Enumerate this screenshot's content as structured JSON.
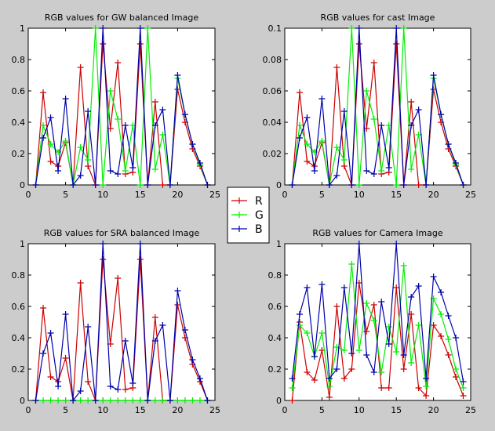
{
  "chart_data": [
    {
      "type": "line",
      "title": "RGB values for GW balanced Image",
      "xlabel": "",
      "ylabel": "",
      "xlim": [
        0,
        25
      ],
      "ylim": [
        0,
        1
      ],
      "xticks": [
        "0",
        "5",
        "10",
        "15",
        "20",
        "25"
      ],
      "yticks": [
        "0",
        "0.2",
        "0.4",
        "0.6",
        "0.8",
        "1"
      ],
      "x": [
        1,
        2,
        3,
        4,
        5,
        6,
        7,
        8,
        9,
        10,
        11,
        12,
        13,
        14,
        15,
        16,
        17,
        18,
        19,
        20,
        21,
        22,
        23,
        24
      ],
      "series": [
        {
          "name": "R",
          "color": "#cc0000",
          "values": [
            0,
            0.59,
            0.15,
            0.12,
            0.27,
            0,
            0.75,
            0.12,
            0,
            0.9,
            0.36,
            0.78,
            0.07,
            0.08,
            0.9,
            0,
            0.53,
            0,
            0,
            0.61,
            0.4,
            0.23,
            0.12,
            0
          ]
        },
        {
          "name": "G",
          "color": "#00ee00",
          "values": [
            0,
            0.38,
            0.26,
            0.21,
            0.28,
            0,
            0.24,
            0.16,
            1,
            0,
            0.6,
            0.42,
            0.09,
            0.38,
            0,
            1,
            0.1,
            0.32,
            0,
            0.68,
            0.45,
            0.26,
            0.13,
            0
          ]
        },
        {
          "name": "B",
          "color": "#0000aa",
          "values": [
            0,
            0.3,
            0.43,
            0.09,
            0.55,
            0,
            0.06,
            0.47,
            0,
            1,
            0.09,
            0.07,
            0.38,
            0.11,
            1,
            0,
            0.38,
            0.48,
            0,
            0.7,
            0.45,
            0.26,
            0.14,
            0
          ]
        }
      ]
    },
    {
      "type": "line",
      "title": "RGB values for cast Image",
      "xlabel": "",
      "ylabel": "",
      "xlim": [
        0,
        25
      ],
      "ylim": [
        0,
        0.1
      ],
      "xticks": [
        "0",
        "5",
        "10",
        "15",
        "20",
        "25"
      ],
      "yticks": [
        "0",
        "0.02",
        "0.04",
        "0.06",
        "0.08",
        "0.1"
      ],
      "x": [
        1,
        2,
        3,
        4,
        5,
        6,
        7,
        8,
        9,
        10,
        11,
        12,
        13,
        14,
        15,
        16,
        17,
        18,
        19,
        20,
        21,
        22,
        23,
        24
      ],
      "series": [
        {
          "name": "R",
          "color": "#cc0000",
          "values": [
            0,
            0.059,
            0.015,
            0.012,
            0.027,
            0,
            0.075,
            0.012,
            0,
            0.09,
            0.036,
            0.078,
            0.007,
            0.008,
            0.09,
            0,
            0.053,
            0,
            0,
            0.061,
            0.04,
            0.023,
            0.012,
            0
          ]
        },
        {
          "name": "G",
          "color": "#00ee00",
          "values": [
            0,
            0.038,
            0.026,
            0.021,
            0.028,
            0,
            0.024,
            0.016,
            0.1,
            0,
            0.06,
            0.042,
            0.009,
            0.038,
            0,
            0.1,
            0.01,
            0.032,
            0,
            0.068,
            0.045,
            0.026,
            0.013,
            0
          ]
        },
        {
          "name": "B",
          "color": "#0000aa",
          "values": [
            0,
            0.03,
            0.043,
            0.009,
            0.055,
            0,
            0.006,
            0.047,
            0,
            0.1,
            0.009,
            0.007,
            0.038,
            0.011,
            0.1,
            0,
            0.038,
            0.048,
            0,
            0.07,
            0.045,
            0.026,
            0.014,
            0
          ]
        }
      ]
    },
    {
      "type": "line",
      "title": "RGB values for SRA balanced Image",
      "xlabel": "",
      "ylabel": "",
      "xlim": [
        0,
        25
      ],
      "ylim": [
        0,
        1
      ],
      "xticks": [
        "0",
        "5",
        "10",
        "15",
        "20",
        "25"
      ],
      "yticks": [
        "0",
        "0.2",
        "0.4",
        "0.6",
        "0.8",
        "1"
      ],
      "x": [
        1,
        2,
        3,
        4,
        5,
        6,
        7,
        8,
        9,
        10,
        11,
        12,
        13,
        14,
        15,
        16,
        17,
        18,
        19,
        20,
        21,
        22,
        23,
        24
      ],
      "series": [
        {
          "name": "R",
          "color": "#cc0000",
          "values": [
            0,
            0.59,
            0.15,
            0.12,
            0.27,
            0,
            0.75,
            0.12,
            0,
            0.9,
            0.36,
            0.78,
            0.07,
            0.08,
            0.9,
            0,
            0.53,
            0,
            0,
            0.61,
            0.4,
            0.23,
            0.12,
            0
          ]
        },
        {
          "name": "G",
          "color": "#00ee00",
          "values": [
            0,
            0,
            0,
            0,
            0,
            0,
            0,
            0,
            0,
            0,
            0,
            0,
            0,
            0,
            0,
            0,
            0,
            0,
            0,
            0,
            0,
            0,
            0,
            0
          ]
        },
        {
          "name": "B",
          "color": "#0000aa",
          "values": [
            0,
            0.3,
            0.43,
            0.09,
            0.55,
            0,
            0.06,
            0.47,
            0,
            1,
            0.09,
            0.07,
            0.38,
            0.11,
            1,
            0,
            0.38,
            0.48,
            0,
            0.7,
            0.45,
            0.26,
            0.14,
            0
          ]
        }
      ]
    },
    {
      "type": "line",
      "title": "RGB values for Camera Image",
      "xlabel": "",
      "ylabel": "",
      "xlim": [
        0,
        25
      ],
      "ylim": [
        0,
        1
      ],
      "xticks": [
        "0",
        "5",
        "10",
        "15",
        "20",
        "25"
      ],
      "yticks": [
        "0",
        "0.2",
        "0.4",
        "0.6",
        "0.8",
        "1"
      ],
      "x": [
        1,
        2,
        3,
        4,
        5,
        6,
        7,
        8,
        9,
        10,
        11,
        12,
        13,
        14,
        15,
        16,
        17,
        18,
        19,
        20,
        21,
        22,
        23,
        24
      ],
      "series": [
        {
          "name": "R",
          "color": "#cc0000",
          "values": [
            0,
            0.5,
            0.18,
            0.13,
            0.32,
            0.02,
            0.6,
            0.14,
            0.2,
            0.75,
            0.44,
            0.61,
            0.08,
            0.08,
            0.72,
            0.2,
            0.55,
            0.08,
            0.03,
            0.48,
            0.41,
            0.29,
            0.15,
            0.03
          ]
        },
        {
          "name": "G",
          "color": "#00ee00",
          "values": [
            0.08,
            0.48,
            0.43,
            0.28,
            0.43,
            0.09,
            0.34,
            0.32,
            0.87,
            0.32,
            0.62,
            0.51,
            0.18,
            0.47,
            0.31,
            0.86,
            0.24,
            0.48,
            0.09,
            0.65,
            0.55,
            0.39,
            0.2,
            0.08
          ]
        },
        {
          "name": "B",
          "color": "#0000aa",
          "values": [
            0.14,
            0.55,
            0.72,
            0.28,
            0.74,
            0.14,
            0.2,
            0.72,
            0.3,
            1,
            0.29,
            0.18,
            0.63,
            0.36,
            1,
            0.29,
            0.66,
            0.73,
            0.14,
            0.79,
            0.69,
            0.54,
            0.4,
            0.12
          ]
        }
      ]
    }
  ],
  "legend": {
    "placement": "center",
    "entries": [
      {
        "label": "R",
        "color": "#cc0000"
      },
      {
        "label": "G",
        "color": "#00ee00"
      },
      {
        "label": "B",
        "color": "#0000aa"
      }
    ]
  }
}
